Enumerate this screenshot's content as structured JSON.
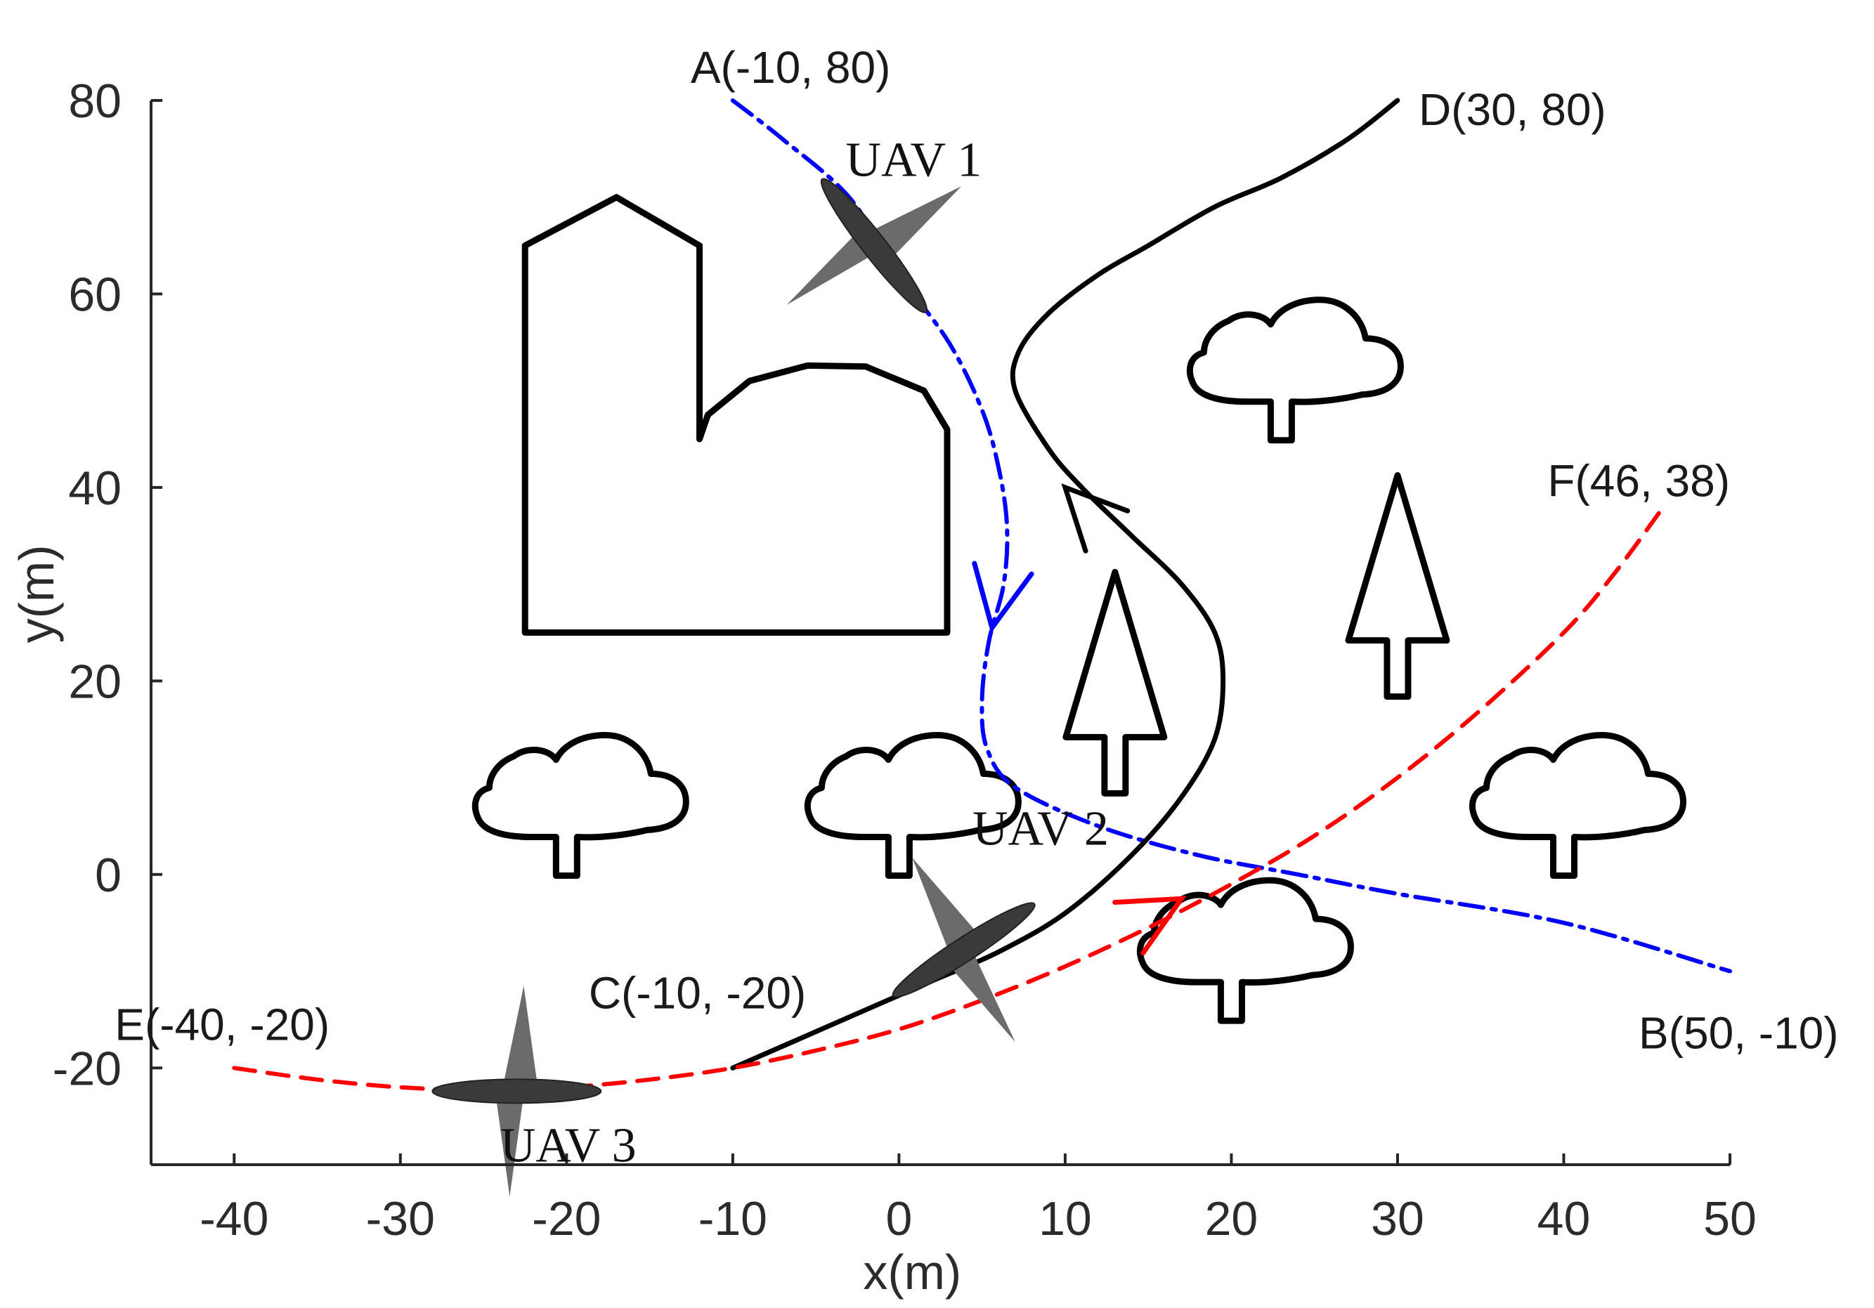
{
  "chart_data": {
    "type": "line",
    "title": "",
    "xlabel": "x(m)",
    "ylabel": "y(m)",
    "xlim": [
      -45,
      50
    ],
    "ylim": [
      -30,
      80
    ],
    "xticks": [
      -40,
      -30,
      -20,
      -10,
      0,
      10,
      20,
      30,
      40,
      50
    ],
    "yticks": [
      -20,
      0,
      20,
      40,
      60,
      80
    ],
    "grid": false,
    "series": [
      {
        "name": "UAV 1",
        "color": "#0000ff",
        "style": "dashdot",
        "x": [
          -10,
          -7,
          -3,
          0,
          3,
          5,
          6,
          6.5,
          6.3,
          5.4,
          5,
          5.3,
          7,
          12,
          18,
          24,
          30,
          40,
          50
        ],
        "y": [
          80,
          76,
          70,
          62,
          55,
          48,
          42,
          36,
          30,
          24,
          18,
          13,
          9,
          5,
          2,
          0,
          -2,
          -5,
          -10
        ],
        "direction_at": [
          5.6,
          25.5
        ]
      },
      {
        "name": "UAV 2",
        "color": "#000000",
        "style": "solid",
        "x": [
          -10,
          -6,
          -2,
          2,
          6,
          10,
          14,
          17,
          19,
          19.5,
          19,
          17,
          14,
          11,
          9,
          7,
          7.2,
          9,
          12,
          15,
          19,
          23,
          27,
          30
        ],
        "y": [
          -20,
          -17,
          -14,
          -11,
          -8,
          -4,
          2,
          8,
          14,
          20,
          25,
          30,
          35,
          40,
          44,
          50,
          54,
          58,
          62,
          65,
          69,
          72,
          76,
          80
        ],
        "direction_at": [
          10,
          40
        ]
      },
      {
        "name": "UAV 3",
        "color": "#ff0000",
        "style": "dashed",
        "x": [
          -40,
          -35,
          -30,
          -25,
          -20,
          -15,
          -10,
          -5,
          0,
          5,
          10,
          15,
          20,
          25,
          30,
          35,
          40,
          43,
          46
        ],
        "y": [
          -20,
          -21.2,
          -22,
          -22.3,
          -22,
          -21.2,
          -20,
          -18.2,
          -16,
          -13,
          -9.5,
          -5.5,
          -1,
          4,
          10,
          17,
          25,
          31,
          38
        ],
        "direction_at": [
          17,
          -2.5
        ]
      }
    ],
    "annotations": [
      {
        "text": "A(-10, 80)",
        "x": -10,
        "y": 80
      },
      {
        "text": "B(50, -10)",
        "x": 50,
        "y": -10
      },
      {
        "text": "C(-10, -20)",
        "x": -10,
        "y": -20
      },
      {
        "text": "D(30, 80)",
        "x": 30,
        "y": 80
      },
      {
        "text": "E(-40, -20)",
        "x": -40,
        "y": -20
      },
      {
        "text": "F(46, 38)",
        "x": 46,
        "y": 38
      },
      {
        "text": "UAV 1",
        "x": -3,
        "y": 70
      },
      {
        "text": "UAV 2",
        "x": 4,
        "y": -6
      },
      {
        "text": "UAV 3",
        "x": -24,
        "y": -22.4
      }
    ],
    "uav_markers": [
      {
        "x": -1.5,
        "y": 65,
        "angle_deg": 52
      },
      {
        "x": 3.9,
        "y": -7.8,
        "angle_deg": -33
      },
      {
        "x": -23,
        "y": -22.4,
        "angle_deg": 0
      }
    ],
    "obstacles": {
      "building": [
        [
          -22.5,
          25
        ],
        [
          2.9,
          25
        ],
        [
          2.9,
          46
        ],
        [
          1.5,
          50
        ],
        [
          -2,
          52.5
        ],
        [
          -5.5,
          52.6
        ],
        [
          -9,
          51
        ],
        [
          -11.5,
          47.5
        ],
        [
          -12,
          45
        ],
        [
          -12,
          65
        ],
        [
          -17,
          70
        ],
        [
          -22.5,
          65
        ]
      ],
      "round_trees": [
        {
          "x": -20,
          "y": 7.5
        },
        {
          "x": 0,
          "y": 7.5
        },
        {
          "x": 23,
          "y": 52.5
        },
        {
          "x": 40,
          "y": 7.5
        },
        {
          "x": 20,
          "y": -7.5
        }
      ],
      "pine_trees": [
        {
          "x": 13,
          "y": 20
        },
        {
          "x": 30,
          "y": 30
        }
      ]
    }
  }
}
